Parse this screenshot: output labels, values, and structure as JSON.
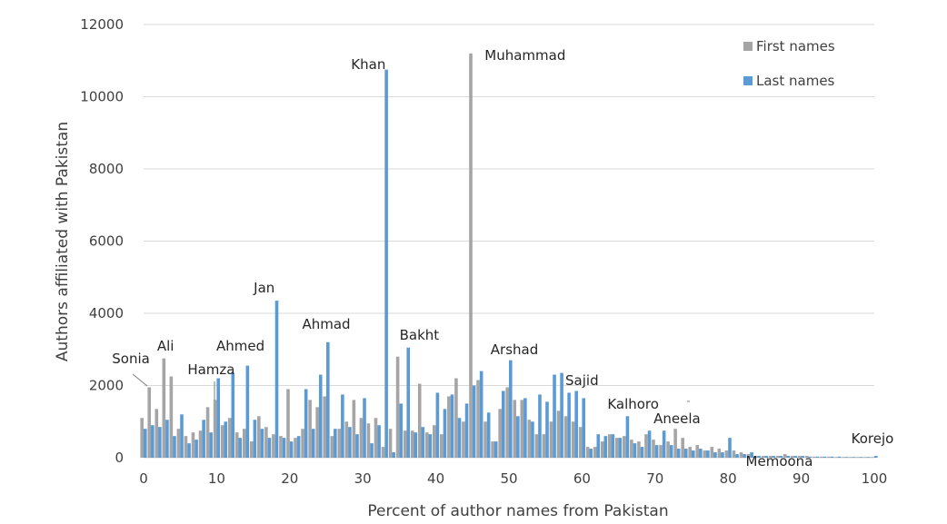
{
  "chart_data": {
    "type": "bar",
    "xlabel": "Percent of author names from Pakistan",
    "ylabel": "Authors affiliated with Pakistan",
    "xlim": [
      0,
      100
    ],
    "ylim": [
      0,
      12000
    ],
    "xticks": [
      0,
      10,
      20,
      30,
      40,
      50,
      60,
      70,
      80,
      90,
      100
    ],
    "yticks": [
      0,
      2000,
      4000,
      6000,
      8000,
      10000,
      12000
    ],
    "grid": true,
    "legend_position": "top-right",
    "colors": {
      "first": "#a5a5a5",
      "last": "#5b9bd5"
    },
    "series": [
      {
        "name": "First names",
        "x": [
          0,
          1,
          2,
          3,
          4,
          5,
          6,
          7,
          8,
          9,
          10,
          11,
          12,
          13,
          14,
          15,
          16,
          17,
          18,
          19,
          20,
          21,
          22,
          23,
          24,
          25,
          26,
          27,
          28,
          29,
          30,
          31,
          32,
          33,
          34,
          35,
          36,
          37,
          38,
          39,
          40,
          41,
          42,
          43,
          44,
          45,
          46,
          47,
          48,
          49,
          50,
          51,
          52,
          53,
          54,
          55,
          56,
          57,
          58,
          59,
          60,
          61,
          62,
          63,
          64,
          65,
          66,
          67,
          68,
          69,
          70,
          71,
          72,
          73,
          74,
          75,
          76,
          77,
          78,
          79,
          80,
          81,
          82,
          83,
          84,
          85,
          86,
          87,
          88,
          89,
          90,
          91,
          92,
          93,
          94,
          95,
          96,
          97,
          98,
          99,
          100
        ],
        "values": [
          1100,
          1950,
          1350,
          2750,
          2250,
          800,
          600,
          700,
          750,
          1400,
          1600,
          900,
          1100,
          700,
          800,
          450,
          1150,
          850,
          650,
          600,
          1900,
          550,
          800,
          1600,
          1400,
          1700,
          600,
          800,
          1000,
          1600,
          1100,
          950,
          1100,
          300,
          800,
          2800,
          750,
          750,
          2050,
          700,
          900,
          650,
          1700,
          2200,
          1000,
          11200,
          2150,
          1000,
          450,
          1350,
          1950,
          1600,
          1600,
          1050,
          650,
          650,
          1000,
          1300,
          1150,
          1000,
          850,
          300,
          300,
          450,
          650,
          550,
          600,
          500,
          450,
          650,
          500,
          350,
          450,
          800,
          550,
          300,
          350,
          200,
          300,
          250,
          200,
          200,
          150,
          100,
          50,
          50,
          50,
          50,
          100,
          50,
          50,
          50,
          30,
          30,
          30,
          20,
          20,
          20,
          20,
          20,
          20
        ]
      },
      {
        "name": "Last names",
        "x": [
          0,
          1,
          2,
          3,
          4,
          5,
          6,
          7,
          8,
          9,
          10,
          11,
          12,
          13,
          14,
          15,
          16,
          17,
          18,
          19,
          20,
          21,
          22,
          23,
          24,
          25,
          26,
          27,
          28,
          29,
          30,
          31,
          32,
          33,
          34,
          35,
          36,
          37,
          38,
          39,
          40,
          41,
          42,
          43,
          44,
          45,
          46,
          47,
          48,
          49,
          50,
          51,
          52,
          53,
          54,
          55,
          56,
          57,
          58,
          59,
          60,
          61,
          62,
          63,
          64,
          65,
          66,
          67,
          68,
          69,
          70,
          71,
          72,
          73,
          74,
          75,
          76,
          77,
          78,
          79,
          80,
          81,
          82,
          83,
          84,
          85,
          86,
          87,
          88,
          89,
          90,
          91,
          92,
          93,
          94,
          95,
          96,
          97,
          98,
          99,
          100
        ],
        "values": [
          800,
          900,
          850,
          1050,
          600,
          1200,
          400,
          500,
          1050,
          700,
          2200,
          1000,
          2350,
          550,
          2550,
          1050,
          800,
          550,
          4350,
          550,
          450,
          600,
          1900,
          800,
          2300,
          3200,
          800,
          1750,
          850,
          650,
          1650,
          400,
          900,
          10750,
          150,
          1500,
          3050,
          700,
          850,
          650,
          1800,
          1350,
          1750,
          1100,
          1500,
          2000,
          2400,
          1250,
          450,
          1850,
          2700,
          1150,
          1650,
          1000,
          1750,
          1550,
          2300,
          2350,
          1800,
          1850,
          1650,
          250,
          650,
          600,
          650,
          550,
          1150,
          400,
          300,
          750,
          350,
          750,
          350,
          250,
          250,
          200,
          250,
          200,
          150,
          150,
          550,
          100,
          100,
          150,
          50,
          50,
          50,
          50,
          50,
          50,
          50,
          30,
          30,
          30,
          30,
          30,
          20,
          20,
          20,
          20,
          50
        ]
      }
    ],
    "annotations": [
      {
        "text": "Sonia",
        "x": 1
      },
      {
        "text": "Ali",
        "x": 3
      },
      {
        "text": "Hamza",
        "x": 10
      },
      {
        "text": "Ahmed",
        "x": 14
      },
      {
        "text": "Jan",
        "x": 18
      },
      {
        "text": "Ahmad",
        "x": 25
      },
      {
        "text": "Khan",
        "x": 33
      },
      {
        "text": "Bakht",
        "x": 35
      },
      {
        "text": "Muhammad",
        "x": 45
      },
      {
        "text": "Arshad",
        "x": 50
      },
      {
        "text": "Sajid",
        "x": 58
      },
      {
        "text": "Kalhoro",
        "x": 66
      },
      {
        "text": "Aneela",
        "x": 73
      },
      {
        "text": "Memoona",
        "x": 87
      },
      {
        "text": "Korejo",
        "x": 100
      }
    ]
  }
}
